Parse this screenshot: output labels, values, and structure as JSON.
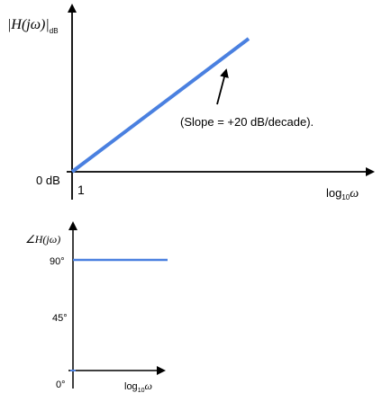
{
  "magnitude_plot": {
    "y_label": {
      "main": "|H(jω)|",
      "subscript": "dB"
    },
    "origin_label": "0 dB",
    "x_origin_label": "1",
    "x_label": {
      "base": "log",
      "subscript": "10",
      "symbol": "ω"
    },
    "annotation": "(Slope = +20 dB/decade)."
  },
  "phase_plot": {
    "y_label": "∠H(jω)",
    "y_labels": [
      "90°",
      "45°",
      "0°"
    ],
    "x_label": {
      "base": "log",
      "subscript": "10",
      "symbol": "ω"
    }
  }
}
